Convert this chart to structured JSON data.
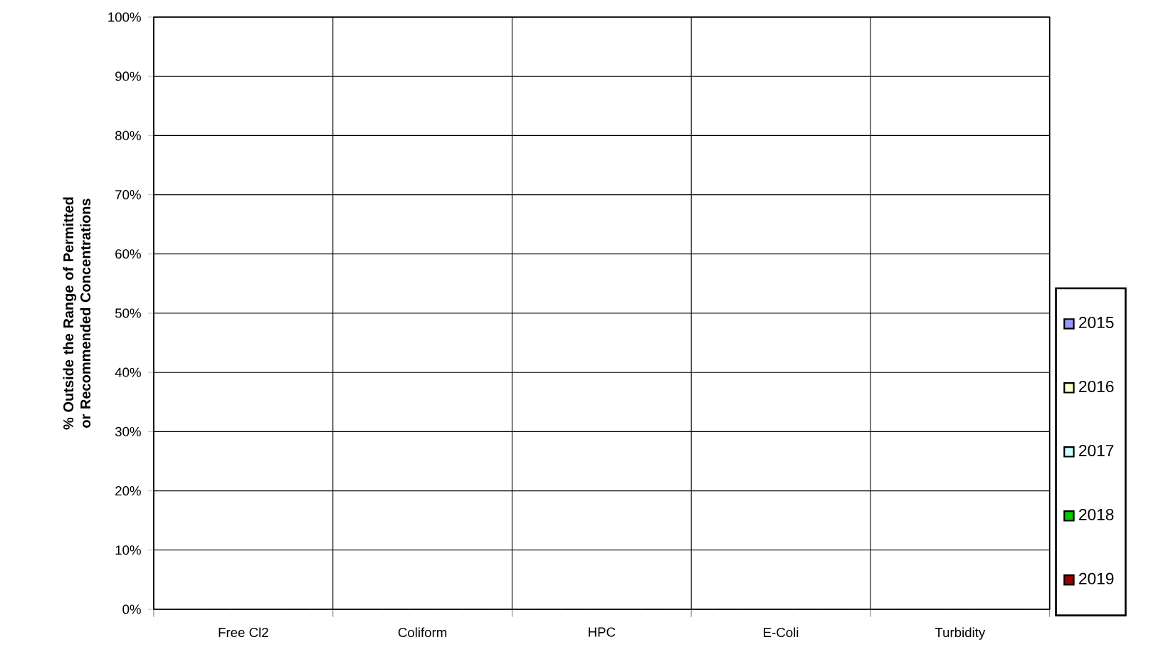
{
  "chart_data": {
    "type": "bar",
    "ylabel": "% Outside the Range of Permitted or Recommended Concentrations",
    "categories": [
      "Free Cl2",
      "Coliform",
      "HPC",
      "E-Coli",
      "Turbidity"
    ],
    "series": [
      {
        "name": "2015",
        "color": "#9999ff",
        "values": [
          0,
          0,
          0,
          0,
          0
        ]
      },
      {
        "name": "2016",
        "color": "#ffffcc",
        "values": [
          0,
          0,
          0,
          0,
          0
        ]
      },
      {
        "name": "2017",
        "color": "#ccffff",
        "values": [
          0,
          0,
          0,
          0,
          0
        ]
      },
      {
        "name": "2018",
        "color": "#00cc00",
        "values": [
          0,
          0,
          0,
          0,
          0
        ]
      },
      {
        "name": "2019",
        "color": "#990000",
        "values": [
          0,
          0,
          0,
          0,
          0
        ]
      }
    ],
    "ylim": [
      0,
      100
    ],
    "yticks": [
      {
        "value": 0,
        "label": "0%"
      },
      {
        "value": 10,
        "label": "10%"
      },
      {
        "value": 20,
        "label": "20%"
      },
      {
        "value": 30,
        "label": "30%"
      },
      {
        "value": 40,
        "label": "40%"
      },
      {
        "value": 50,
        "label": "50%"
      },
      {
        "value": 60,
        "label": "60%"
      },
      {
        "value": 70,
        "label": "70%"
      },
      {
        "value": 80,
        "label": "80%"
      },
      {
        "value": 90,
        "label": "90%"
      },
      {
        "value": 100,
        "label": "100%"
      }
    ],
    "grid": true,
    "legend": "right"
  }
}
